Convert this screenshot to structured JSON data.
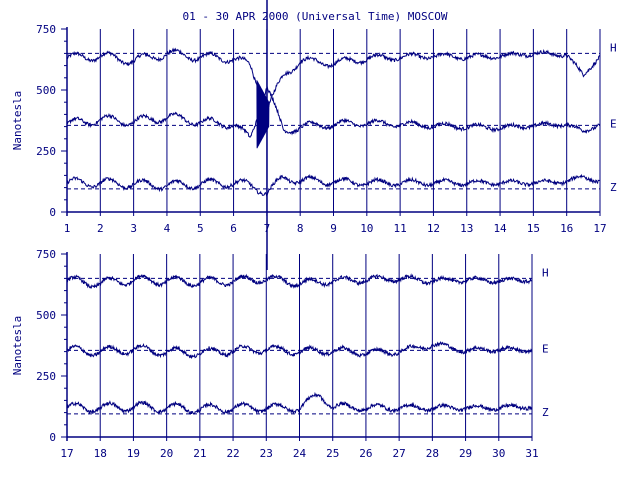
{
  "title": "01 - 30 APR 2000 (Universal Time) MOSCOW",
  "ink_color": "#000080",
  "chart_data": [
    {
      "type": "line",
      "panel": "top",
      "title": "",
      "xlabel": "",
      "ylabel": "Nanotesla",
      "x_ticks": [
        "1",
        "2",
        "3",
        "4",
        "5",
        "6",
        "7",
        "8",
        "9",
        "10",
        "11",
        "12",
        "13",
        "14",
        "15",
        "16",
        "17"
      ],
      "xlim": [
        1,
        17
      ],
      "y_ticks": [
        "0",
        "250",
        "500",
        "750"
      ],
      "ylim": [
        0,
        750
      ],
      "grid": "vertical lines at each day",
      "series": [
        {
          "name": "H",
          "baseline": 650,
          "x": [
            1,
            2,
            3,
            4,
            5,
            6,
            6.5,
            7,
            7.5,
            8,
            9,
            10,
            11,
            12,
            13,
            14,
            15,
            16,
            16.5,
            17
          ],
          "values": [
            630,
            640,
            620,
            650,
            635,
            630,
            600,
            420,
            560,
            620,
            610,
            630,
            635,
            640,
            635,
            640,
            650,
            645,
            560,
            640
          ]
        },
        {
          "name": "E",
          "baseline": 355,
          "x": [
            1,
            2,
            3,
            4,
            5,
            6,
            6.5,
            7,
            7.5,
            8,
            9,
            10,
            11,
            12,
            13,
            14,
            15,
            16,
            16.5,
            17
          ],
          "values": [
            360,
            380,
            370,
            390,
            370,
            360,
            300,
            520,
            330,
            350,
            360,
            365,
            360,
            355,
            350,
            345,
            355,
            360,
            330,
            360
          ]
        },
        {
          "name": "Z",
          "baseline": 95,
          "x": [
            1,
            2,
            3,
            4,
            5,
            6,
            6.5,
            7,
            7.5,
            8,
            9,
            10,
            11,
            12,
            13,
            14,
            15,
            16,
            16.5,
            17
          ],
          "values": [
            120,
            120,
            115,
            110,
            115,
            120,
            110,
            80,
            140,
            130,
            125,
            120,
            120,
            120,
            120,
            120,
            120,
            125,
            145,
            125
          ]
        }
      ]
    },
    {
      "type": "line",
      "panel": "bottom",
      "title": "",
      "xlabel": "",
      "ylabel": "Nanotesla",
      "x_ticks": [
        "17",
        "18",
        "19",
        "20",
        "21",
        "22",
        "23",
        "24",
        "25",
        "26",
        "27",
        "28",
        "29",
        "30",
        "31"
      ],
      "xlim": [
        17,
        31
      ],
      "y_ticks": [
        "0",
        "250",
        "500",
        "750"
      ],
      "ylim": [
        0,
        750
      ],
      "grid": "vertical lines at each day",
      "series": [
        {
          "name": "H",
          "baseline": 650,
          "x": [
            17,
            18,
            19,
            20,
            21,
            22,
            23,
            24,
            25,
            26,
            27,
            28,
            29,
            30,
            31
          ],
          "values": [
            640,
            630,
            645,
            640,
            635,
            640,
            650,
            630,
            640,
            645,
            650,
            640,
            645,
            640,
            645
          ]
        },
        {
          "name": "E",
          "baseline": 355,
          "x": [
            17,
            18,
            19,
            20,
            21,
            22,
            23,
            24,
            25,
            26,
            27,
            28,
            29,
            30,
            31
          ],
          "values": [
            355,
            350,
            360,
            350,
            345,
            355,
            360,
            350,
            355,
            345,
            350,
            380,
            355,
            360,
            355
          ]
        },
        {
          "name": "Z",
          "baseline": 95,
          "x": [
            17,
            18,
            19,
            20,
            21,
            22,
            23,
            24,
            24.6,
            25,
            26,
            27,
            28,
            29,
            30,
            31
          ],
          "values": [
            120,
            120,
            125,
            120,
            115,
            120,
            120,
            120,
            175,
            125,
            120,
            120,
            120,
            120,
            120,
            125
          ]
        }
      ]
    }
  ]
}
